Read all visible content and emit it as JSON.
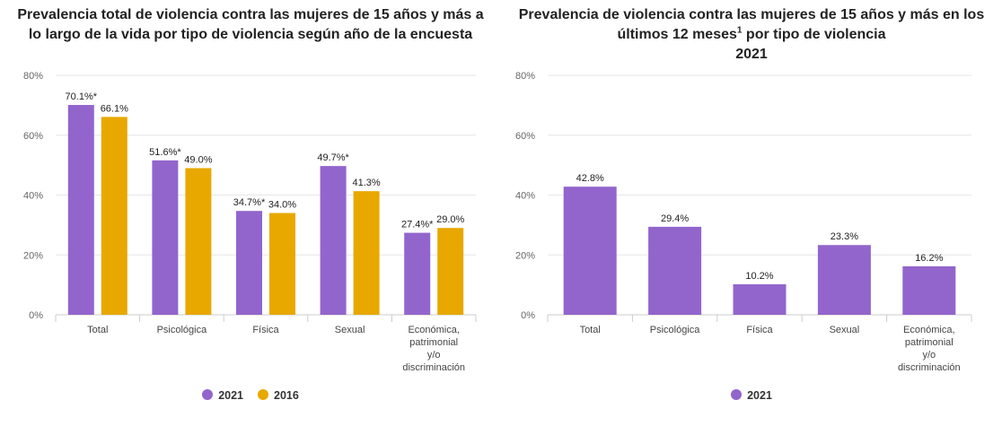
{
  "charts": [
    {
      "title_line1": "Prevalencia total de violencia contra las mujeres de 15 años y más a",
      "title_line2": "lo largo de la vida por tipo de violencia según año de la encuesta",
      "title_line3": ""
    },
    {
      "title_line1": "Prevalencia de violencia contra las mujeres de 15 años y más en los",
      "title_line2": "últimos 12 meses",
      "title_sup": "1",
      "title_line2_rest": " por tipo de violencia",
      "title_line3": "2021"
    }
  ],
  "chart_data": [
    {
      "type": "bar",
      "title": "Prevalencia total de violencia contra las mujeres de 15 años y más a lo largo de la vida por tipo de violencia según año de la encuesta",
      "categories": [
        "Total",
        "Psicológica",
        "Física",
        "Sexual",
        "Económica, patrimonial y/o discriminación"
      ],
      "category_lines": [
        [
          "Total"
        ],
        [
          "Psicológica"
        ],
        [
          "Física"
        ],
        [
          "Sexual"
        ],
        [
          "Económica,",
          "patrimonial",
          "y/o",
          "discriminación"
        ]
      ],
      "series": [
        {
          "name": "2021",
          "color": "#9265cc",
          "values": [
            70.1,
            51.6,
            34.7,
            49.7,
            27.4
          ],
          "labels": [
            "70.1%*",
            "51.6%*",
            "34.7%*",
            "49.7%*",
            "27.4%*"
          ]
        },
        {
          "name": "2016",
          "color": "#e8a800",
          "values": [
            66.1,
            49.0,
            34.0,
            41.3,
            29.0
          ],
          "labels": [
            "66.1%",
            "49.0%",
            "34.0%",
            "41.3%",
            "29.0%"
          ]
        }
      ],
      "ylim": [
        0,
        80
      ],
      "yticks": [
        0,
        20,
        40,
        60,
        80
      ],
      "ytick_labels": [
        "0%",
        "20%",
        "40%",
        "60%",
        "80%"
      ],
      "xlabel": "",
      "ylabel": "",
      "grid": true,
      "legend": "bottom-center"
    },
    {
      "type": "bar",
      "title": "Prevalencia de violencia contra las mujeres de 15 años y más en los últimos 12 meses1 por tipo de violencia 2021",
      "categories": [
        "Total",
        "Psicológica",
        "Física",
        "Sexual",
        "Económica, patrimonial y/o discriminación"
      ],
      "category_lines": [
        [
          "Total"
        ],
        [
          "Psicológica"
        ],
        [
          "Física"
        ],
        [
          "Sexual"
        ],
        [
          "Económica,",
          "patrimonial",
          "y/o",
          "discriminación"
        ]
      ],
      "series": [
        {
          "name": "2021",
          "color": "#9265cc",
          "values": [
            42.8,
            29.4,
            10.2,
            23.3,
            16.2
          ],
          "labels": [
            "42.8%",
            "29.4%",
            "10.2%",
            "23.3%",
            "16.2%"
          ]
        }
      ],
      "ylim": [
        0,
        80
      ],
      "yticks": [
        0,
        20,
        40,
        60,
        80
      ],
      "ytick_labels": [
        "0%",
        "20%",
        "40%",
        "60%",
        "80%"
      ],
      "xlabel": "",
      "ylabel": "",
      "grid": true,
      "legend": "bottom-center"
    }
  ]
}
